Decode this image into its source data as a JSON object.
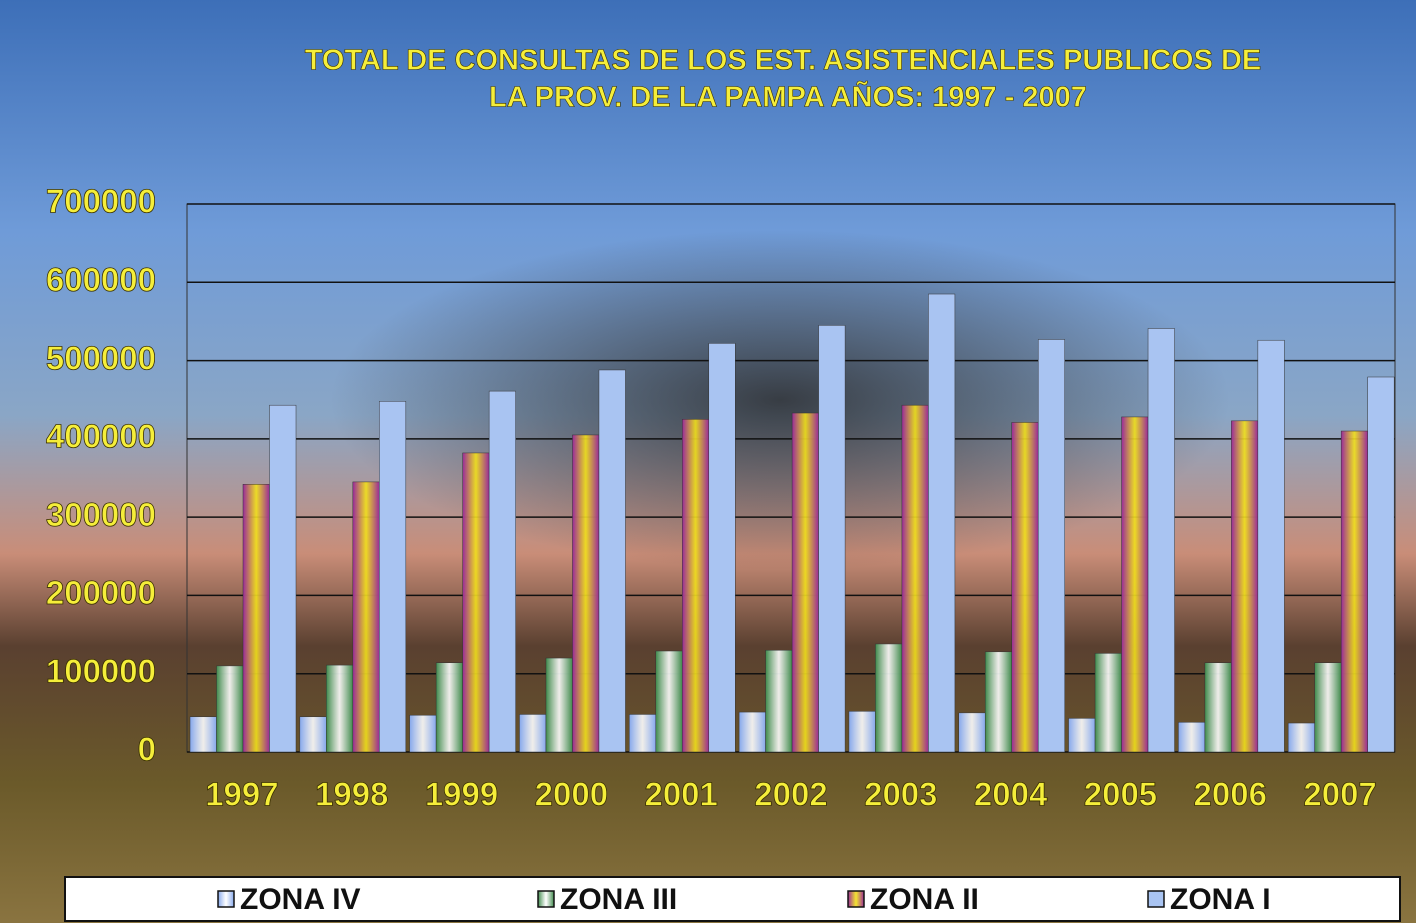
{
  "chart_data": {
    "type": "bar",
    "title": "TOTAL DE CONSULTAS DE LOS EST. ASISTENCIALES PUBLICOS DE",
    "subtitle": "LA PROV. DE LA PAMPA AÑOS: 1997 - 2007",
    "categories": [
      "1997",
      "1998",
      "1999",
      "2000",
      "2001",
      "2002",
      "2003",
      "2004",
      "2005",
      "2006",
      "2007"
    ],
    "series": [
      {
        "name": "ZONA IV",
        "color": "#86a8ec",
        "values": [
          45000,
          45000,
          47000,
          48000,
          48000,
          51000,
          52000,
          50000,
          43000,
          38000,
          37000
        ]
      },
      {
        "name": "ZONA III",
        "color": "#3f8a4c",
        "values": [
          110000,
          111000,
          114000,
          120000,
          129000,
          130000,
          138000,
          128000,
          126000,
          114000,
          114000
        ]
      },
      {
        "name": "ZONA II",
        "color": "#f2e21a",
        "values": [
          342000,
          345000,
          382000,
          405000,
          425000,
          433000,
          443000,
          421000,
          428000,
          423000,
          410000
        ]
      },
      {
        "name": "ZONA I",
        "color": "#a9c4f2",
        "values": [
          443000,
          448000,
          461000,
          488000,
          522000,
          545000,
          585000,
          527000,
          541000,
          526000,
          479000
        ]
      }
    ],
    "ylim": [
      0,
      700000
    ],
    "yticks": [
      0,
      100000,
      200000,
      300000,
      400000,
      500000,
      600000,
      700000
    ],
    "grid": true
  }
}
